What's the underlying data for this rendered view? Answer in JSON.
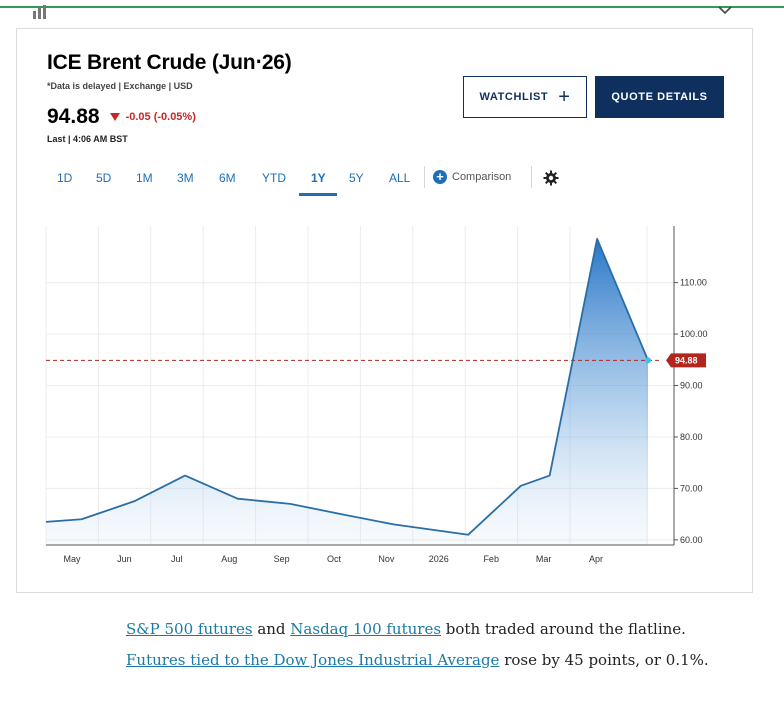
{
  "header": {
    "title": "ICE Brent Crude (Jun‧26)",
    "subtitle": "*Data is delayed | Exchange | USD",
    "price": "94.88",
    "change": "-0.05 (-0.05%)",
    "last_updated": "Last | 4:06 AM BST"
  },
  "buttons": {
    "watchlist": "WATCHLIST",
    "quote_details": "QUOTE DETAILS"
  },
  "range_tabs": [
    "1D",
    "5D",
    "1M",
    "3M",
    "6M",
    "YTD",
    "1Y",
    "5Y",
    "ALL"
  ],
  "active_tab": "1Y",
  "comparison_label": "Comparison",
  "icons": {
    "watchlist_plus": "plus-icon",
    "comparison": "plus-circle-icon",
    "settings": "gear-icon",
    "change_direction": "down-triangle-icon",
    "collapse": "chevron-down-icon",
    "widget": "bar-chart-icon"
  },
  "colors": {
    "accent": "#1d6fb8",
    "navy": "#0f2f5e",
    "down": "#c62828",
    "line": "#2a6ea6",
    "top_rule": "#2e9a55"
  },
  "chart_data": {
    "type": "area",
    "x_ticks": [
      "May",
      "Jun",
      "Jul",
      "Aug",
      "Sep",
      "Oct",
      "Nov",
      "2026",
      "Feb",
      "Mar",
      "Apr"
    ],
    "x": [
      "2025-04-10",
      "2025-05-01",
      "2025-06-01",
      "2025-07-01",
      "2025-08-01",
      "2025-09-01",
      "2025-10-01",
      "2025-11-01",
      "2025-12-15",
      "2026-01-15",
      "2026-02-01",
      "2026-03-01",
      "2026-03-31"
    ],
    "values": [
      63.5,
      64.0,
      67.5,
      72.5,
      68.0,
      67.0,
      65.0,
      63.0,
      61.0,
      70.5,
      72.5,
      118.5,
      94.88
    ],
    "y_ticks": [
      "60.00",
      "70.00",
      "80.00",
      "90.00",
      "100.00",
      "110.00"
    ],
    "ylim": [
      59,
      121
    ],
    "reference_line": 94.88,
    "current_label": "94.88",
    "grid": true
  },
  "article": {
    "link1": "S&P 500 futures",
    "text1": " and ",
    "link2": "Nasdaq 100 futures",
    "text2": " both traded around the flatline. ",
    "link3": "Futures tied to the Dow Jones Industrial Average",
    "text3": " rose by 45 points, or 0.1%."
  }
}
